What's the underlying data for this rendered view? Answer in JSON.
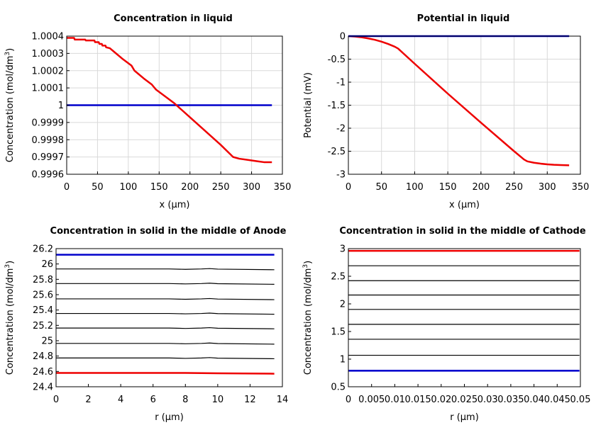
{
  "chart_data": [
    {
      "type": "line",
      "title": "Concentration in liquid",
      "xlabel": "x (µm)",
      "ylabel": "Concentration (mol/dm",
      "ylabel_sup": "3",
      "ylabel_tail": ")",
      "xlim": [
        0,
        350
      ],
      "ylim": [
        0.9996,
        1.0004
      ],
      "xticks": [
        0,
        50,
        100,
        150,
        200,
        250,
        300,
        350
      ],
      "xtick_labels": [
        "0",
        "50",
        "100",
        "150",
        "200",
        "250",
        "300",
        "350"
      ],
      "yticks": [
        0.9996,
        0.9997,
        0.9998,
        0.9999,
        1,
        1.0001,
        1.0002,
        1.0003,
        1.0004
      ],
      "ytick_labels": [
        "0.9996",
        "0.9997",
        "0.9998",
        "0.9999",
        "1",
        "1.0001",
        "1.0002",
        "1.0003",
        "1.0004"
      ],
      "grid": true,
      "series": [
        {
          "color": "#0000cc",
          "width": 2.5,
          "x": [
            0,
            333
          ],
          "y": [
            1.0,
            1.0
          ]
        },
        {
          "color": "#ee0000",
          "width": 2.5,
          "x": [
            0,
            12,
            13,
            30,
            31,
            45,
            46,
            52,
            53,
            57,
            58,
            63,
            64,
            70,
            80,
            90,
            105,
            110,
            125,
            138,
            145,
            160,
            175,
            200,
            225,
            250,
            270,
            280,
            290,
            300,
            310,
            320,
            333
          ],
          "y": [
            1.00039,
            1.00039,
            1.00038,
            1.00038,
            1.000375,
            1.000375,
            1.000365,
            1.000365,
            1.000355,
            1.000355,
            1.000345,
            1.000345,
            1.000335,
            1.00033,
            1.0003,
            1.00027,
            1.00023,
            1.0002,
            1.000155,
            1.00012,
            1.00009,
            1.00005,
            1.00001,
            0.99993,
            0.99985,
            0.99977,
            0.9997,
            0.99969,
            0.999685,
            0.99968,
            0.999675,
            0.99967,
            0.99967
          ]
        }
      ]
    },
    {
      "type": "line",
      "title": "Potential in liquid",
      "xlabel": "x (µm)",
      "ylabel": "Potential (mV)",
      "ylabel_sup": "",
      "ylabel_tail": "",
      "xlim": [
        0,
        350
      ],
      "ylim": [
        -3,
        0
      ],
      "xticks": [
        0,
        50,
        100,
        150,
        200,
        250,
        300,
        350
      ],
      "xtick_labels": [
        "0",
        "50",
        "100",
        "150",
        "200",
        "250",
        "300",
        "350"
      ],
      "yticks": [
        -3,
        -2.5,
        -2,
        -1.5,
        -1,
        -0.5,
        0
      ],
      "ytick_labels": [
        "-3",
        "-2.5",
        "-2",
        "-1.5",
        "-1",
        "-0.5",
        "0"
      ],
      "grid": true,
      "series": [
        {
          "color": "#ee0000",
          "width": 2.5,
          "x": [
            0,
            10,
            20,
            30,
            40,
            50,
            60,
            70,
            75,
            100,
            150,
            200,
            250,
            265,
            270,
            280,
            290,
            300,
            310,
            320,
            333
          ],
          "y": [
            0,
            -0.01,
            -0.025,
            -0.05,
            -0.08,
            -0.12,
            -0.17,
            -0.23,
            -0.27,
            -0.6,
            -1.25,
            -1.88,
            -2.5,
            -2.68,
            -2.72,
            -2.75,
            -2.77,
            -2.785,
            -2.795,
            -2.8,
            -2.805
          ]
        },
        {
          "color": "#0000cc",
          "width": 2.5,
          "x": [
            0,
            333
          ],
          "y": [
            0,
            0
          ]
        }
      ]
    },
    {
      "type": "line",
      "title": "Concentration in solid in the middle of Anode",
      "xlabel": "r (µm)",
      "ylabel": "Concentration (mol/dm",
      "ylabel_sup": "3",
      "ylabel_tail": ")",
      "xlim": [
        0,
        14
      ],
      "ylim": [
        24.4,
        26.2
      ],
      "xticks": [
        0,
        2,
        4,
        6,
        8,
        10,
        12,
        14
      ],
      "xtick_labels": [
        "0",
        "2",
        "4",
        "6",
        "8",
        "10",
        "12",
        "14"
      ],
      "yticks": [
        24.4,
        24.6,
        24.8,
        25,
        25.2,
        25.4,
        25.6,
        25.8,
        26,
        26.2
      ],
      "ytick_labels": [
        "24.4",
        "24.6",
        "24.8",
        "25",
        "25.2",
        "25.4",
        "25.6",
        "25.8",
        "26",
        "26.2"
      ],
      "grid": false,
      "series": [
        {
          "color": "#000000",
          "width": 1.2,
          "x": [
            0,
            7,
            8,
            9,
            9.5,
            10,
            13.5
          ],
          "y": [
            25.935,
            25.935,
            25.93,
            25.935,
            25.94,
            25.933,
            25.925
          ]
        },
        {
          "color": "#000000",
          "width": 1.2,
          "x": [
            0,
            7,
            8,
            9,
            9.5,
            10,
            13.5
          ],
          "y": [
            25.745,
            25.745,
            25.74,
            25.745,
            25.75,
            25.743,
            25.735
          ]
        },
        {
          "color": "#000000",
          "width": 1.2,
          "x": [
            0,
            7,
            8,
            9,
            9.5,
            10,
            13.5
          ],
          "y": [
            25.545,
            25.545,
            25.54,
            25.545,
            25.55,
            25.543,
            25.535
          ]
        },
        {
          "color": "#000000",
          "width": 1.2,
          "x": [
            0,
            7,
            8,
            9,
            9.5,
            10,
            13.5
          ],
          "y": [
            25.355,
            25.355,
            25.35,
            25.355,
            25.36,
            25.353,
            25.345
          ]
        },
        {
          "color": "#000000",
          "width": 1.2,
          "x": [
            0,
            7,
            8,
            9,
            9.5,
            10,
            13.5
          ],
          "y": [
            25.165,
            25.165,
            25.16,
            25.165,
            25.17,
            25.163,
            25.155
          ]
        },
        {
          "color": "#000000",
          "width": 1.2,
          "x": [
            0,
            7,
            8,
            9,
            9.5,
            10,
            13.5
          ],
          "y": [
            24.965,
            24.965,
            24.96,
            24.965,
            24.97,
            24.963,
            24.955
          ]
        },
        {
          "color": "#000000",
          "width": 1.2,
          "x": [
            0,
            7,
            8,
            9,
            9.5,
            10,
            13.5
          ],
          "y": [
            24.775,
            24.775,
            24.77,
            24.775,
            24.78,
            24.773,
            24.765
          ]
        },
        {
          "color": "#0000cc",
          "width": 2.5,
          "x": [
            0,
            13.5
          ],
          "y": [
            26.12,
            26.12
          ]
        },
        {
          "color": "#ee0000",
          "width": 2.5,
          "x": [
            0,
            8,
            9,
            10,
            13.5
          ],
          "y": [
            24.58,
            24.58,
            24.578,
            24.575,
            24.57
          ]
        }
      ]
    },
    {
      "type": "line",
      "title": "Concentration in solid in the middle of Cathode",
      "xlabel": "r (µm)",
      "ylabel": "Concentration (mol/dm",
      "ylabel_sup": "3",
      "ylabel_tail": ")",
      "xlim": [
        0,
        0.05
      ],
      "ylim": [
        0.5,
        3
      ],
      "xticks": [
        0,
        0.005,
        0.01,
        0.015,
        0.02,
        0.025,
        0.03,
        0.035,
        0.04,
        0.045,
        0.05
      ],
      "xtick_labels": [
        "0",
        "0.005",
        "0.01",
        "0.015",
        "0.02",
        "0.025",
        "0.03",
        "0.035",
        "0.04",
        "0.045",
        "0.05"
      ],
      "yticks": [
        0.5,
        1,
        1.5,
        2,
        2.5,
        3
      ],
      "ytick_labels": [
        "0.5",
        "1",
        "1.5",
        "2",
        "2.5",
        "3"
      ],
      "grid": false,
      "series": [
        {
          "color": "#000000",
          "width": 1.2,
          "x": [
            0,
            0.0498
          ],
          "y": [
            2.69,
            2.69
          ]
        },
        {
          "color": "#000000",
          "width": 1.2,
          "x": [
            0,
            0.0498
          ],
          "y": [
            2.42,
            2.42
          ]
        },
        {
          "color": "#000000",
          "width": 1.2,
          "x": [
            0,
            0.0498
          ],
          "y": [
            2.16,
            2.16
          ]
        },
        {
          "color": "#000000",
          "width": 1.2,
          "x": [
            0,
            0.0498
          ],
          "y": [
            1.9,
            1.9
          ]
        },
        {
          "color": "#000000",
          "width": 1.2,
          "x": [
            0,
            0.0498
          ],
          "y": [
            1.63,
            1.63
          ]
        },
        {
          "color": "#000000",
          "width": 1.2,
          "x": [
            0,
            0.0498
          ],
          "y": [
            1.36,
            1.36
          ]
        },
        {
          "color": "#000000",
          "width": 1.2,
          "x": [
            0,
            0.0498
          ],
          "y": [
            1.07,
            1.07
          ]
        },
        {
          "color": "#ee0000",
          "width": 2.5,
          "x": [
            0,
            0.0498
          ],
          "y": [
            2.96,
            2.96
          ]
        },
        {
          "color": "#0000cc",
          "width": 2.5,
          "x": [
            0,
            0.0498
          ],
          "y": [
            0.79,
            0.79
          ]
        }
      ]
    }
  ]
}
